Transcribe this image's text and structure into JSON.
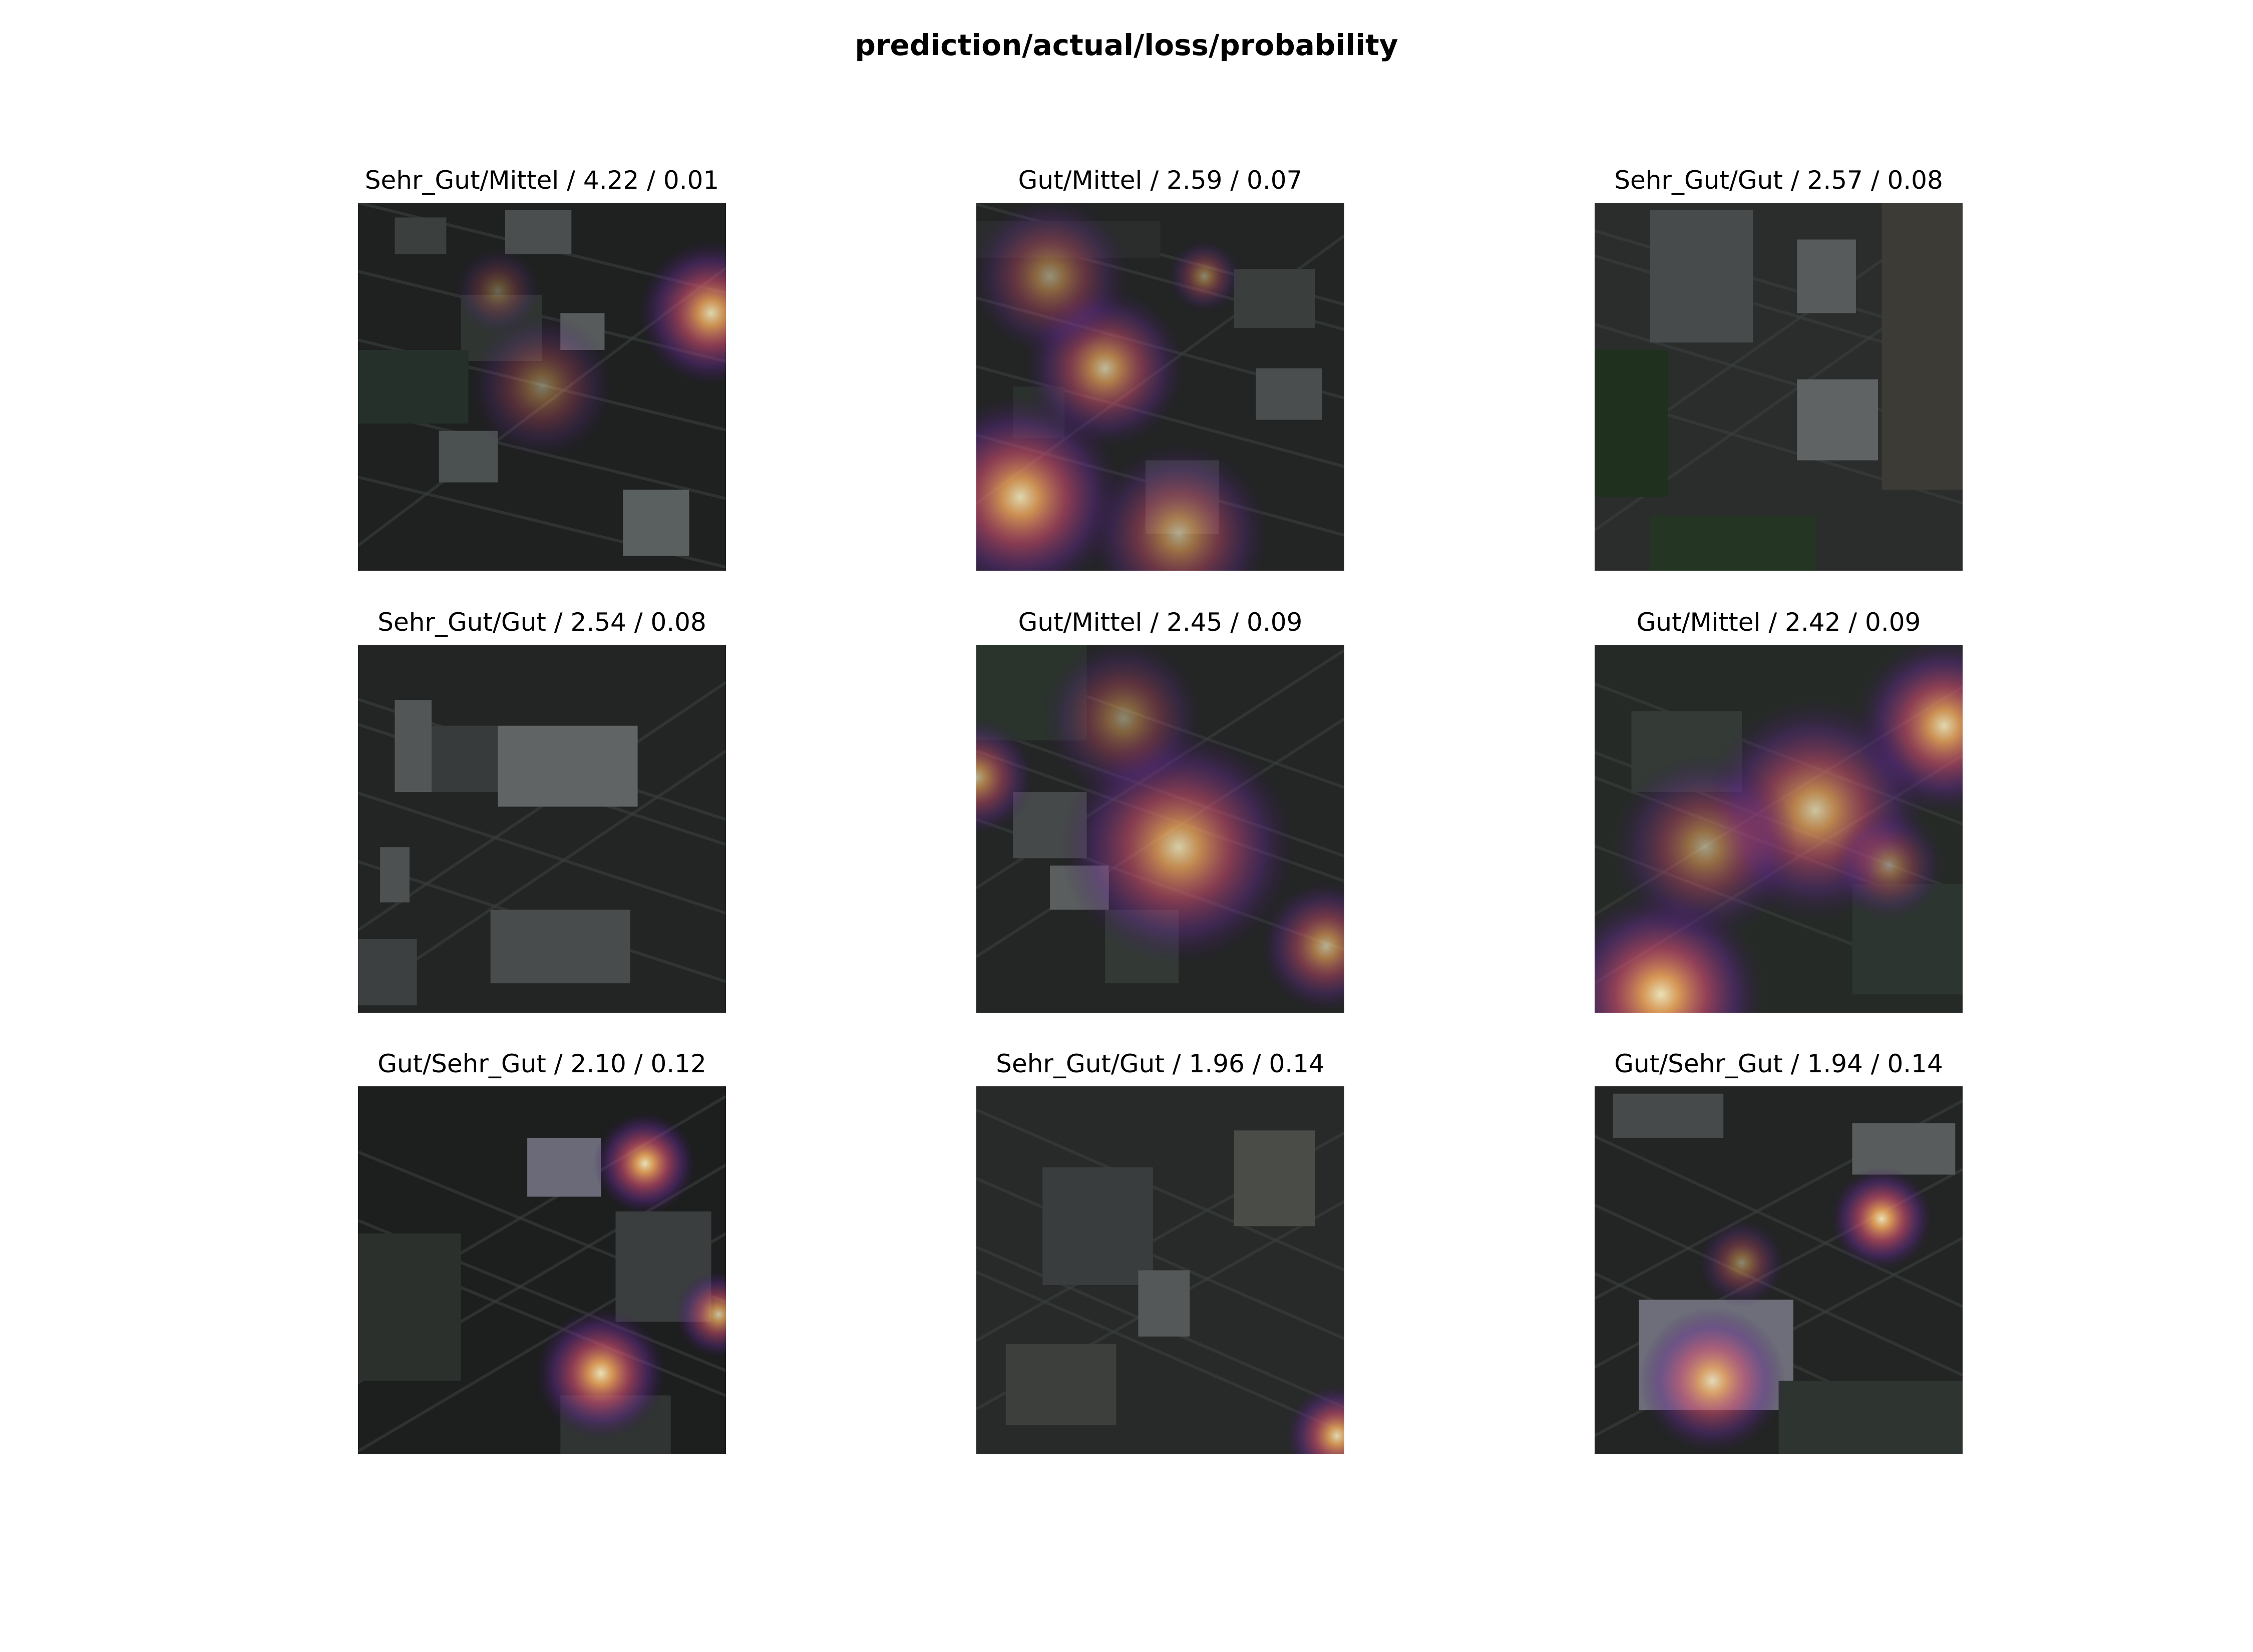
{
  "title": "prediction/actual/loss/probability",
  "panels": [
    {
      "caption": "Sehr_Gut/Mittel / 4.22 / 0.01",
      "prediction": "Sehr_Gut",
      "actual": "Mittel",
      "loss": 4.22,
      "probability": 0.01,
      "image": {
        "base": "#1e211f",
        "blocks": [
          [
            "#3b3f3d",
            0.1,
            0.04,
            0.14,
            0.1
          ],
          [
            "#4a4e4e",
            0.4,
            0.02,
            0.18,
            0.12
          ],
          [
            "#2f3631",
            0.28,
            0.25,
            0.22,
            0.18
          ],
          [
            "#575b5c",
            0.55,
            0.3,
            0.12,
            0.1
          ],
          [
            "#4b5050",
            0.22,
            0.62,
            0.16,
            0.14
          ],
          [
            "#5a5f60",
            0.72,
            0.78,
            0.18,
            0.18
          ],
          [
            "#26302a",
            0.0,
            0.4,
            0.3,
            0.2
          ]
        ],
        "heat": [
          [
            0.96,
            0.3,
            0.2,
            0.9
          ],
          [
            0.5,
            0.5,
            0.2,
            0.45
          ],
          [
            0.38,
            0.24,
            0.12,
            0.35
          ]
        ]
      }
    },
    {
      "caption": "Gut/Mittel / 2.59 / 0.07",
      "prediction": "Gut",
      "actual": "Mittel",
      "loss": 2.59,
      "probability": 0.07,
      "image": {
        "base": "#222523",
        "blocks": [
          [
            "#3a3e3d",
            0.7,
            0.18,
            0.22,
            0.16
          ],
          [
            "#4a4e4f",
            0.76,
            0.45,
            0.18,
            0.14
          ],
          [
            "#2a2d2c",
            0.0,
            0.05,
            0.5,
            0.1
          ],
          [
            "#393d3c",
            0.46,
            0.7,
            0.2,
            0.2
          ],
          [
            "#2b312c",
            0.1,
            0.5,
            0.14,
            0.14
          ]
        ],
        "heat": [
          [
            0.12,
            0.8,
            0.28,
            0.9
          ],
          [
            0.35,
            0.45,
            0.22,
            0.75
          ],
          [
            0.62,
            0.2,
            0.1,
            0.5
          ],
          [
            0.2,
            0.2,
            0.22,
            0.55
          ],
          [
            0.55,
            0.9,
            0.25,
            0.65
          ]
        ]
      }
    },
    {
      "caption": "Sehr_Gut/Gut / 2.57 / 0.08",
      "prediction": "Sehr_Gut",
      "actual": "Gut",
      "loss": 2.57,
      "probability": 0.08,
      "image": {
        "base": "#2a2d2b",
        "blocks": [
          [
            "#474b4b",
            0.15,
            0.02,
            0.28,
            0.36
          ],
          [
            "#575b5b",
            0.55,
            0.1,
            0.16,
            0.2
          ],
          [
            "#5f6364",
            0.55,
            0.48,
            0.22,
            0.22
          ],
          [
            "#3c3b36",
            0.78,
            0.0,
            0.22,
            0.78
          ],
          [
            "#20301f",
            0.0,
            0.4,
            0.2,
            0.4
          ],
          [
            "#243623",
            0.15,
            0.85,
            0.45,
            0.15
          ]
        ],
        "heat": []
      }
    },
    {
      "caption": "Sehr_Gut/Gut / 2.54 / 0.08",
      "prediction": "Sehr_Gut",
      "actual": "Gut",
      "loss": 2.54,
      "probability": 0.08,
      "image": {
        "base": "#232524",
        "blocks": [
          [
            "#525656",
            0.1,
            0.15,
            0.1,
            0.25
          ],
          [
            "#606464",
            0.38,
            0.22,
            0.38,
            0.22
          ],
          [
            "#383b3b",
            0.2,
            0.22,
            0.18,
            0.18
          ],
          [
            "#4d5151",
            0.06,
            0.55,
            0.08,
            0.15
          ],
          [
            "#484c4c",
            0.36,
            0.72,
            0.38,
            0.2
          ],
          [
            "#3c4040",
            0.0,
            0.8,
            0.16,
            0.18
          ]
        ],
        "heat": []
      }
    },
    {
      "caption": "Gut/Mittel / 2.45 / 0.09",
      "prediction": "Gut",
      "actual": "Mittel",
      "loss": 2.45,
      "probability": 0.09,
      "image": {
        "base": "#232624",
        "blocks": [
          [
            "#454949",
            0.1,
            0.4,
            0.2,
            0.18
          ],
          [
            "#5a5e5e",
            0.2,
            0.6,
            0.16,
            0.12
          ],
          [
            "#2a332c",
            0.0,
            0.0,
            0.3,
            0.26
          ],
          [
            "#333a35",
            0.35,
            0.72,
            0.2,
            0.2
          ]
        ],
        "heat": [
          [
            0.55,
            0.55,
            0.32,
            0.85
          ],
          [
            0.0,
            0.36,
            0.16,
            0.7
          ],
          [
            0.95,
            0.82,
            0.18,
            0.7
          ],
          [
            0.4,
            0.2,
            0.22,
            0.5
          ]
        ]
      }
    },
    {
      "caption": "Gut/Mittel / 2.42 / 0.09",
      "prediction": "Gut",
      "actual": "Mittel",
      "loss": 2.42,
      "probability": 0.09,
      "image": {
        "base": "#262a27",
        "blocks": [
          [
            "#343a36",
            0.1,
            0.18,
            0.3,
            0.22
          ],
          [
            "#2d3530",
            0.7,
            0.65,
            0.3,
            0.3
          ]
        ],
        "heat": [
          [
            0.18,
            0.95,
            0.28,
            0.95
          ],
          [
            0.95,
            0.22,
            0.24,
            0.9
          ],
          [
            0.6,
            0.45,
            0.3,
            0.8
          ],
          [
            0.3,
            0.55,
            0.25,
            0.6
          ],
          [
            0.8,
            0.6,
            0.15,
            0.5
          ]
        ]
      }
    },
    {
      "caption": "Gut/Sehr_Gut / 2.10 / 0.12",
      "prediction": "Gut",
      "actual": "Sehr_Gut",
      "loss": 2.1,
      "probability": 0.12,
      "image": {
        "base": "#1c1f1d",
        "blocks": [
          [
            "#6a6a78",
            0.46,
            0.14,
            0.2,
            0.16
          ],
          [
            "#3a3e3e",
            0.7,
            0.34,
            0.26,
            0.3
          ],
          [
            "#2c302d",
            0.0,
            0.4,
            0.28,
            0.4
          ],
          [
            "#303432",
            0.55,
            0.84,
            0.3,
            0.16
          ]
        ],
        "heat": [
          [
            0.78,
            0.21,
            0.14,
            0.95
          ],
          [
            0.66,
            0.78,
            0.18,
            0.95
          ],
          [
            0.98,
            0.62,
            0.12,
            0.8
          ]
        ]
      }
    },
    {
      "caption": "Sehr_Gut/Gut / 1.96 / 0.14",
      "prediction": "Sehr_Gut",
      "actual": "Gut",
      "loss": 1.96,
      "probability": 0.14,
      "image": {
        "base": "#272a28",
        "blocks": [
          [
            "#3a3d3d",
            0.18,
            0.22,
            0.3,
            0.32
          ],
          [
            "#4a4c47",
            0.7,
            0.12,
            0.22,
            0.26
          ],
          [
            "#545858",
            0.44,
            0.5,
            0.14,
            0.18
          ],
          [
            "#3d3f3c",
            0.08,
            0.7,
            0.3,
            0.22
          ]
        ],
        "heat": [
          [
            0.98,
            0.95,
            0.14,
            0.9
          ]
        ]
      }
    },
    {
      "caption": "Gut/Sehr_Gut / 1.94 / 0.14",
      "prediction": "Gut",
      "actual": "Sehr_Gut",
      "loss": 1.94,
      "probability": 0.14,
      "image": {
        "base": "#222523",
        "blocks": [
          [
            "#464a4a",
            0.05,
            0.02,
            0.3,
            0.12
          ],
          [
            "#585c5c",
            0.7,
            0.1,
            0.28,
            0.14
          ],
          [
            "#6e6e7a",
            0.12,
            0.58,
            0.42,
            0.3
          ],
          [
            "#2e3430",
            0.5,
            0.8,
            0.5,
            0.2
          ]
        ],
        "heat": [
          [
            0.78,
            0.36,
            0.14,
            0.95
          ],
          [
            0.32,
            0.8,
            0.2,
            0.85
          ],
          [
            0.4,
            0.48,
            0.12,
            0.5
          ]
        ]
      }
    }
  ]
}
